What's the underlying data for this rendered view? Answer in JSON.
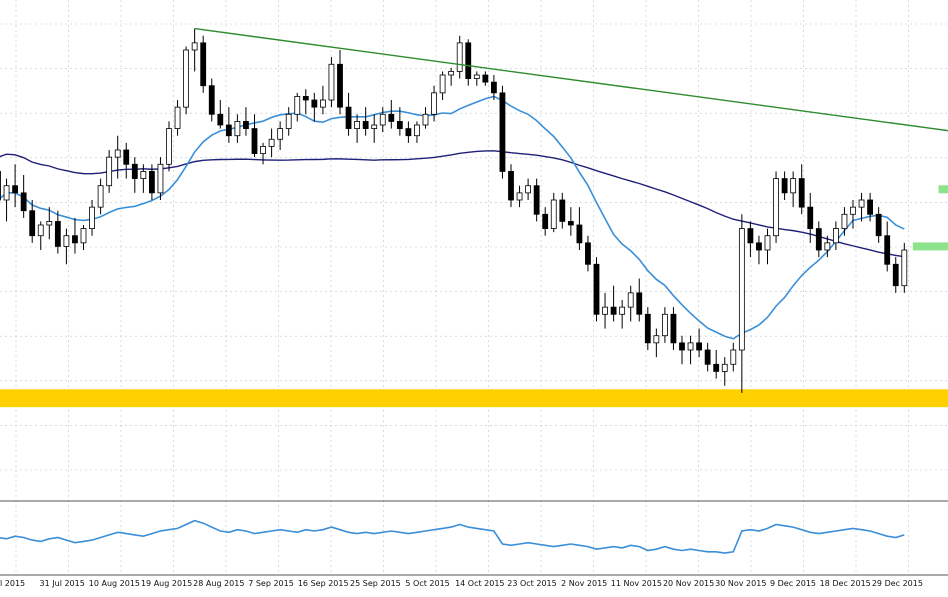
{
  "chart_data": [
    {
      "type": "candlestick",
      "panel": "main",
      "grid": true,
      "x_tick_labels": [
        "l 2015",
        "31 Jul 2015",
        "10 Aug 2015",
        "19 Aug 2015",
        "28 Aug 2015",
        "7 Sep 2015",
        "16 Sep 2015",
        "25 Sep 2015",
        "5 Oct 2015",
        "14 Oct 2015",
        "23 Oct 2015",
        "2 Nov 2015",
        "11 Nov 2015",
        "20 Nov 2015",
        "30 Nov 2015",
        "9 Dec 2015",
        "18 Dec 2015",
        "29 Dec 2015"
      ],
      "ylim": [
        0,
        100
      ],
      "candles": [
        {
          "o": 72,
          "h": 76,
          "l": 60,
          "c": 64
        },
        {
          "o": 64,
          "h": 70,
          "l": 58,
          "c": 68
        },
        {
          "o": 68,
          "h": 74,
          "l": 62,
          "c": 66
        },
        {
          "o": 66,
          "h": 71,
          "l": 59,
          "c": 61
        },
        {
          "o": 61,
          "h": 64,
          "l": 52,
          "c": 54
        },
        {
          "o": 54,
          "h": 58,
          "l": 50,
          "c": 57
        },
        {
          "o": 57,
          "h": 62,
          "l": 53,
          "c": 58
        },
        {
          "o": 58,
          "h": 61,
          "l": 49,
          "c": 51
        },
        {
          "o": 51,
          "h": 56,
          "l": 46,
          "c": 54
        },
        {
          "o": 54,
          "h": 59,
          "l": 49,
          "c": 52
        },
        {
          "o": 52,
          "h": 57,
          "l": 50,
          "c": 56
        },
        {
          "o": 56,
          "h": 64,
          "l": 54,
          "c": 62
        },
        {
          "o": 62,
          "h": 70,
          "l": 60,
          "c": 68
        },
        {
          "o": 68,
          "h": 78,
          "l": 66,
          "c": 76
        },
        {
          "o": 76,
          "h": 82,
          "l": 70,
          "c": 78
        },
        {
          "o": 78,
          "h": 80,
          "l": 70,
          "c": 74
        },
        {
          "o": 74,
          "h": 76,
          "l": 66,
          "c": 70
        },
        {
          "o": 70,
          "h": 74,
          "l": 66,
          "c": 72
        },
        {
          "o": 72,
          "h": 74,
          "l": 64,
          "c": 66
        },
        {
          "o": 66,
          "h": 76,
          "l": 64,
          "c": 74
        },
        {
          "o": 74,
          "h": 86,
          "l": 72,
          "c": 84
        },
        {
          "o": 84,
          "h": 92,
          "l": 82,
          "c": 90
        },
        {
          "o": 90,
          "h": 107,
          "l": 88,
          "c": 106
        },
        {
          "o": 106,
          "h": 112,
          "l": 100,
          "c": 108
        },
        {
          "o": 108,
          "h": 110,
          "l": 94,
          "c": 96
        },
        {
          "o": 96,
          "h": 98,
          "l": 86,
          "c": 88
        },
        {
          "o": 88,
          "h": 92,
          "l": 84,
          "c": 85
        },
        {
          "o": 85,
          "h": 90,
          "l": 80,
          "c": 82
        },
        {
          "o": 82,
          "h": 88,
          "l": 80,
          "c": 86
        },
        {
          "o": 86,
          "h": 90,
          "l": 82,
          "c": 84
        },
        {
          "o": 84,
          "h": 88,
          "l": 76,
          "c": 77
        },
        {
          "o": 77,
          "h": 80,
          "l": 74,
          "c": 79
        },
        {
          "o": 79,
          "h": 84,
          "l": 76,
          "c": 81
        },
        {
          "o": 81,
          "h": 86,
          "l": 78,
          "c": 84
        },
        {
          "o": 84,
          "h": 90,
          "l": 82,
          "c": 88
        },
        {
          "o": 88,
          "h": 94,
          "l": 86,
          "c": 93
        },
        {
          "o": 93,
          "h": 95,
          "l": 88,
          "c": 92
        },
        {
          "o": 92,
          "h": 94,
          "l": 86,
          "c": 90
        },
        {
          "o": 90,
          "h": 96,
          "l": 88,
          "c": 92
        },
        {
          "o": 92,
          "h": 104,
          "l": 90,
          "c": 102
        },
        {
          "o": 102,
          "h": 106,
          "l": 88,
          "c": 90
        },
        {
          "o": 90,
          "h": 94,
          "l": 82,
          "c": 84
        },
        {
          "o": 84,
          "h": 88,
          "l": 80,
          "c": 86
        },
        {
          "o": 86,
          "h": 90,
          "l": 82,
          "c": 84
        },
        {
          "o": 84,
          "h": 88,
          "l": 80,
          "c": 85
        },
        {
          "o": 85,
          "h": 90,
          "l": 83,
          "c": 88
        },
        {
          "o": 88,
          "h": 92,
          "l": 84,
          "c": 86
        },
        {
          "o": 86,
          "h": 90,
          "l": 82,
          "c": 84
        },
        {
          "o": 84,
          "h": 86,
          "l": 80,
          "c": 82
        },
        {
          "o": 82,
          "h": 86,
          "l": 80,
          "c": 85
        },
        {
          "o": 85,
          "h": 90,
          "l": 84,
          "c": 88
        },
        {
          "o": 88,
          "h": 96,
          "l": 86,
          "c": 94
        },
        {
          "o": 94,
          "h": 100,
          "l": 92,
          "c": 99
        },
        {
          "o": 99,
          "h": 101,
          "l": 96,
          "c": 100
        },
        {
          "o": 100,
          "h": 110,
          "l": 98,
          "c": 108
        },
        {
          "o": 108,
          "h": 109,
          "l": 96,
          "c": 98
        },
        {
          "o": 98,
          "h": 100,
          "l": 96,
          "c": 99
        },
        {
          "o": 99,
          "h": 100,
          "l": 96,
          "c": 97
        },
        {
          "o": 97,
          "h": 99,
          "l": 92,
          "c": 94
        },
        {
          "o": 94,
          "h": 96,
          "l": 70,
          "c": 72
        },
        {
          "o": 72,
          "h": 74,
          "l": 62,
          "c": 64
        },
        {
          "o": 64,
          "h": 68,
          "l": 62,
          "c": 66
        },
        {
          "o": 66,
          "h": 70,
          "l": 64,
          "c": 68
        },
        {
          "o": 68,
          "h": 70,
          "l": 58,
          "c": 60
        },
        {
          "o": 60,
          "h": 62,
          "l": 54,
          "c": 56
        },
        {
          "o": 56,
          "h": 66,
          "l": 55,
          "c": 64
        },
        {
          "o": 64,
          "h": 66,
          "l": 56,
          "c": 58
        },
        {
          "o": 58,
          "h": 62,
          "l": 54,
          "c": 57
        },
        {
          "o": 57,
          "h": 62,
          "l": 50,
          "c": 52
        },
        {
          "o": 52,
          "h": 54,
          "l": 44,
          "c": 46
        },
        {
          "o": 46,
          "h": 48,
          "l": 30,
          "c": 32
        },
        {
          "o": 32,
          "h": 38,
          "l": 28,
          "c": 34
        },
        {
          "o": 34,
          "h": 40,
          "l": 30,
          "c": 32
        },
        {
          "o": 32,
          "h": 36,
          "l": 28,
          "c": 34
        },
        {
          "o": 34,
          "h": 40,
          "l": 30,
          "c": 38
        },
        {
          "o": 38,
          "h": 42,
          "l": 30,
          "c": 32
        },
        {
          "o": 32,
          "h": 34,
          "l": 22,
          "c": 24
        },
        {
          "o": 24,
          "h": 28,
          "l": 20,
          "c": 26
        },
        {
          "o": 26,
          "h": 34,
          "l": 24,
          "c": 32
        },
        {
          "o": 32,
          "h": 34,
          "l": 22,
          "c": 24
        },
        {
          "o": 24,
          "h": 26,
          "l": 18,
          "c": 22
        },
        {
          "o": 22,
          "h": 26,
          "l": 18,
          "c": 24
        },
        {
          "o": 24,
          "h": 28,
          "l": 20,
          "c": 22
        },
        {
          "o": 22,
          "h": 24,
          "l": 16,
          "c": 18
        },
        {
          "o": 18,
          "h": 22,
          "l": 14,
          "c": 16
        },
        {
          "o": 16,
          "h": 20,
          "l": 12,
          "c": 18
        },
        {
          "o": 18,
          "h": 24,
          "l": 16,
          "c": 22
        },
        {
          "o": 22,
          "h": 60,
          "l": 10,
          "c": 56
        },
        {
          "o": 56,
          "h": 58,
          "l": 48,
          "c": 52
        },
        {
          "o": 52,
          "h": 54,
          "l": 46,
          "c": 50
        },
        {
          "o": 50,
          "h": 56,
          "l": 46,
          "c": 54
        },
        {
          "o": 54,
          "h": 72,
          "l": 52,
          "c": 70
        },
        {
          "o": 70,
          "h": 72,
          "l": 64,
          "c": 66
        },
        {
          "o": 66,
          "h": 72,
          "l": 62,
          "c": 70
        },
        {
          "o": 70,
          "h": 74,
          "l": 60,
          "c": 62
        },
        {
          "o": 62,
          "h": 66,
          "l": 52,
          "c": 56
        },
        {
          "o": 56,
          "h": 58,
          "l": 48,
          "c": 50
        },
        {
          "o": 50,
          "h": 54,
          "l": 48,
          "c": 52
        },
        {
          "o": 52,
          "h": 58,
          "l": 50,
          "c": 56
        },
        {
          "o": 56,
          "h": 62,
          "l": 54,
          "c": 60
        },
        {
          "o": 60,
          "h": 64,
          "l": 56,
          "c": 62
        },
        {
          "o": 62,
          "h": 66,
          "l": 58,
          "c": 64
        },
        {
          "o": 64,
          "h": 66,
          "l": 58,
          "c": 60
        },
        {
          "o": 60,
          "h": 62,
          "l": 52,
          "c": 54
        },
        {
          "o": 54,
          "h": 58,
          "l": 44,
          "c": 46
        },
        {
          "o": 46,
          "h": 48,
          "l": 38,
          "c": 40
        },
        {
          "o": 40,
          "h": 52,
          "l": 38,
          "c": 50
        }
      ],
      "indicators": {
        "ma_fast": {
          "color": "#3a8fd8"
        },
        "ma_slow": {
          "color": "#1f1f7a"
        }
      },
      "annotations": {
        "trendline": {
          "color": "#2e8b2e",
          "from": {
            "x": 23,
            "y": 112
          },
          "to": {
            "x": 134,
            "y": 76
          }
        },
        "resistance_band": {
          "color": "#7fe07f",
          "x": [
            110,
            134
          ],
          "y": 67
        },
        "support_band": {
          "color": "#7fe07f",
          "x": [
            107,
            134
          ],
          "y": 51
        },
        "support_zone": {
          "color": "#ffd000",
          "y": [
            6,
            11
          ]
        }
      }
    },
    {
      "type": "line",
      "panel": "oscillator",
      "series": [
        {
          "color": "#3a8fd8",
          "values": [
            50,
            48,
            52,
            50,
            46,
            44,
            48,
            50,
            46,
            42,
            44,
            46,
            50,
            54,
            58,
            56,
            54,
            52,
            56,
            60,
            62,
            64,
            70,
            76,
            72,
            66,
            60,
            58,
            62,
            60,
            56,
            58,
            60,
            62,
            60,
            58,
            62,
            60,
            62,
            66,
            62,
            58,
            56,
            58,
            56,
            58,
            60,
            58,
            56,
            58,
            60,
            62,
            64,
            66,
            70,
            66,
            64,
            62,
            60,
            40,
            38,
            40,
            42,
            40,
            38,
            36,
            38,
            40,
            38,
            36,
            32,
            34,
            36,
            34,
            38,
            36,
            30,
            32,
            36,
            32,
            30,
            32,
            30,
            28,
            28,
            26,
            28,
            60,
            62,
            60,
            64,
            70,
            68,
            66,
            62,
            58,
            56,
            58,
            60,
            62,
            64,
            62,
            60,
            56,
            52,
            50,
            54
          ]
        }
      ]
    }
  ]
}
